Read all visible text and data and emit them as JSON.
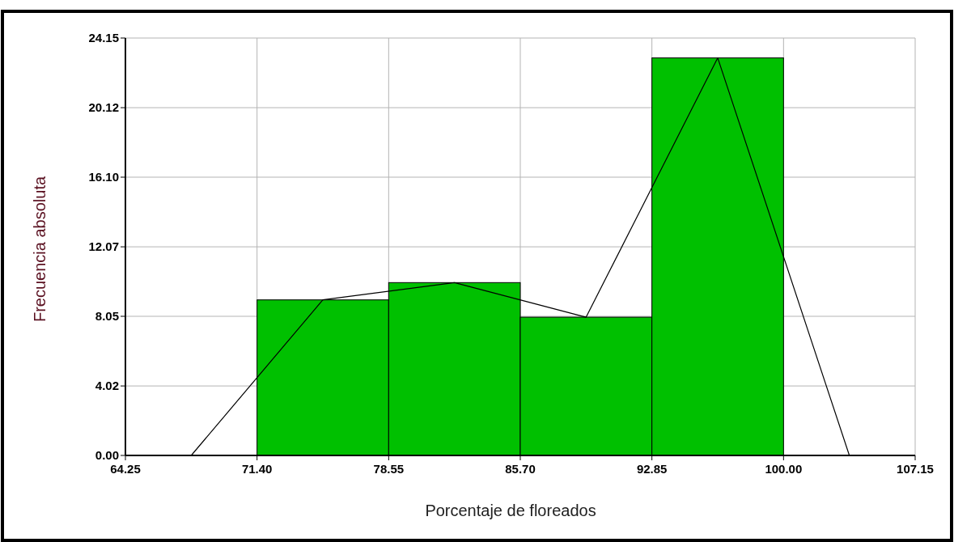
{
  "chart_data": {
    "type": "histogram",
    "xlabel": "Porcentaje de floreados",
    "ylabel": "Frecuencia absoluta",
    "xlim": [
      64.25,
      107.15
    ],
    "xticks": [
      64.25,
      {
        "value": 71.4,
        "label": "71.40"
      },
      78.55,
      {
        "value": 85.7,
        "label": "85.70"
      },
      92.85,
      {
        "value": 100,
        "label": "100.00"
      },
      107.15
    ],
    "ylim": [
      0,
      24.15
    ],
    "yticks": [
      {
        "value": 0,
        "label": "0.00"
      },
      4.02,
      8.05,
      12.07,
      {
        "value": 16.1,
        "label": "16.10"
      },
      20.12,
      24.15
    ],
    "grid": true,
    "bins": [
      71.4,
      78.55,
      85.7,
      92.85,
      100
    ],
    "values": [
      9,
      10,
      8,
      23
    ],
    "color": "#00c000",
    "series": [
      {
        "type": "line",
        "x": [
          67.825,
          74.975,
          82.125,
          89.275,
          96.425,
          103.575
        ],
        "values": [
          0,
          9,
          10,
          8,
          23,
          0
        ],
        "color": "#000000"
      }
    ]
  }
}
